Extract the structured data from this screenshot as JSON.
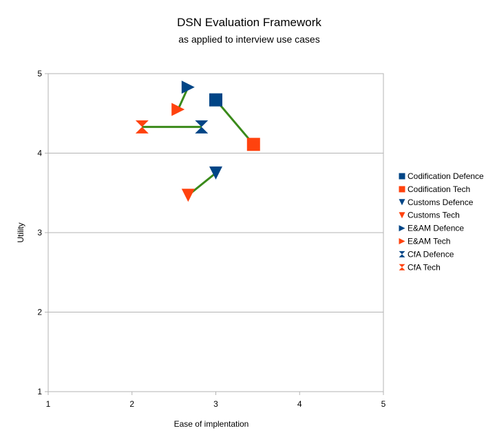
{
  "chart_data": {
    "type": "scatter",
    "title": "DSN Evaluation Framework",
    "subtitle": "as applied to interview use cases",
    "xlabel": "Ease of implentation",
    "ylabel": "Utility",
    "xlim": [
      1,
      5
    ],
    "ylim": [
      1,
      5
    ],
    "x_ticks": [
      "1",
      "2",
      "3",
      "4",
      "5"
    ],
    "y_ticks": [
      "1",
      "2",
      "3",
      "4",
      "5"
    ],
    "grid": "horizontal",
    "legend_position": "right",
    "colors": {
      "defence": "#004586",
      "tech": "#FF420E",
      "connector": "#3A8A1A",
      "grid": "#B3B3B3"
    },
    "series": [
      {
        "name": "Codification Defence",
        "x": 3.0,
        "y": 4.67,
        "marker": "square",
        "color": "#004586"
      },
      {
        "name": "Codification Tech",
        "x": 3.45,
        "y": 4.11,
        "marker": "square",
        "color": "#FF420E"
      },
      {
        "name": "Customs Defence",
        "x": 3.0,
        "y": 3.75,
        "marker": "triangle-down",
        "color": "#004586"
      },
      {
        "name": "Customs Tech",
        "x": 2.67,
        "y": 3.47,
        "marker": "triangle-down",
        "color": "#FF420E"
      },
      {
        "name": "E&AM Defence",
        "x": 2.67,
        "y": 4.83,
        "marker": "triangle-right",
        "color": "#004586"
      },
      {
        "name": "E&AM Tech",
        "x": 2.55,
        "y": 4.55,
        "marker": "triangle-right",
        "color": "#FF420E"
      },
      {
        "name": "CfA Defence",
        "x": 2.83,
        "y": 4.33,
        "marker": "hourglass",
        "color": "#004586"
      },
      {
        "name": "CfA Tech",
        "x": 2.12,
        "y": 4.33,
        "marker": "hourglass",
        "color": "#FF420E"
      }
    ],
    "connectors": [
      {
        "from": [
          3.0,
          4.67
        ],
        "to": [
          3.45,
          4.11
        ]
      },
      {
        "from": [
          3.0,
          3.75
        ],
        "to": [
          2.67,
          3.47
        ]
      },
      {
        "from": [
          2.67,
          4.83
        ],
        "to": [
          2.55,
          4.55
        ]
      },
      {
        "from": [
          2.83,
          4.33
        ],
        "to": [
          2.12,
          4.33
        ]
      }
    ]
  }
}
